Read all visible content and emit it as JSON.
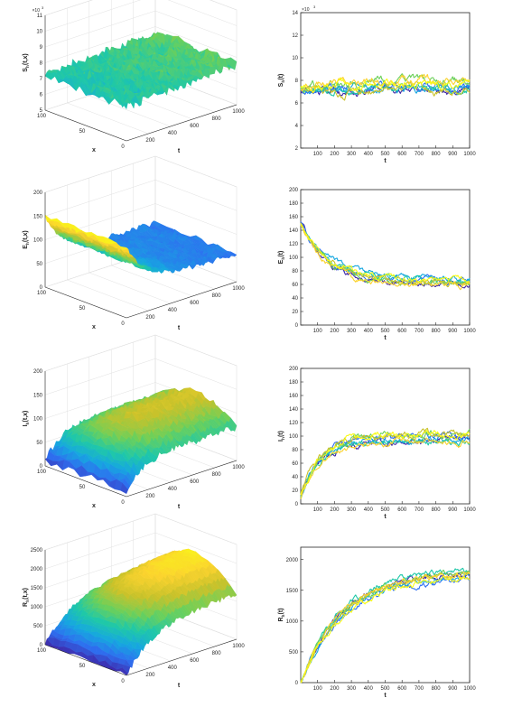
{
  "figure": {
    "colors": {
      "palette": [
        "#3e26a8",
        "#2e6ff0",
        "#16a7e0",
        "#1fc8a8",
        "#6cd05a",
        "#c9c22a",
        "#fbd32e",
        "#f9fb15"
      ],
      "axis": "#262626",
      "grid": "#e0e0e0"
    }
  },
  "chart_data": [
    {
      "id": "S3d",
      "type": "surface",
      "zlabel_main": "S",
      "zlabel_sub": "h",
      "zlabel_suffix": "(t,x)",
      "xlabel": "x",
      "ylabel": "t",
      "zlim": [
        5,
        11
      ],
      "z_exponent": "×10",
      "z_exponent_power": "3",
      "zticks": [
        "5",
        "6",
        "7",
        "8",
        "9",
        "10",
        "11"
      ],
      "xticks": [
        "0",
        "50",
        "100"
      ],
      "tticks": [
        "200",
        "400",
        "600",
        "800",
        "1000"
      ],
      "t_range": [
        0,
        1000
      ],
      "x_range": [
        0,
        100
      ],
      "pattern": "flat",
      "start": 7.2,
      "end": 7.6,
      "noise": 0.35,
      "color_range": [
        6,
        9
      ],
      "grid": true
    },
    {
      "id": "S2d",
      "type": "line",
      "ylabel_main": "S",
      "ylabel_sub": "h",
      "ylabel_suffix": "(t)",
      "xlabel": "t",
      "xlim": [
        0,
        1000
      ],
      "ylim": [
        2,
        14
      ],
      "y_exponent": "×10",
      "y_exponent_power": "3",
      "xticks": [
        "100",
        "200",
        "300",
        "400",
        "500",
        "600",
        "700",
        "800",
        "900",
        "1000"
      ],
      "yticks": [
        "2",
        "4",
        "6",
        "8",
        "10",
        "12",
        "14"
      ],
      "series_count": 8,
      "pattern": "flat",
      "start": 7.2,
      "end": 7.5,
      "noise": 0.45,
      "series_spread": 0.5
    },
    {
      "id": "E3d",
      "type": "surface",
      "zlabel_main": "E",
      "zlabel_sub": "h",
      "zlabel_suffix": "(t,x)",
      "xlabel": "x",
      "ylabel": "t",
      "zlim": [
        0,
        200
      ],
      "zticks": [
        "0",
        "50",
        "100",
        "150",
        "200"
      ],
      "xticks": [
        "0",
        "50",
        "100"
      ],
      "tticks": [
        "200",
        "400",
        "600",
        "800",
        "1000"
      ],
      "t_range": [
        0,
        1000
      ],
      "x_range": [
        0,
        100
      ],
      "pattern": "decay",
      "start": 150,
      "end": 60,
      "noise": 6,
      "color_range": [
        40,
        150
      ],
      "grid": true
    },
    {
      "id": "E2d",
      "type": "line",
      "ylabel_main": "E",
      "ylabel_sub": "h",
      "ylabel_suffix": "(t)",
      "xlabel": "t",
      "xlim": [
        0,
        1000
      ],
      "ylim": [
        0,
        200
      ],
      "xticks": [
        "100",
        "200",
        "300",
        "400",
        "500",
        "600",
        "700",
        "800",
        "900",
        "1000"
      ],
      "yticks": [
        "0",
        "20",
        "40",
        "60",
        "80",
        "100",
        "120",
        "140",
        "160",
        "180",
        "200"
      ],
      "series_count": 8,
      "pattern": "decay",
      "start": 150,
      "end": 62,
      "noise": 5,
      "series_spread": 6
    },
    {
      "id": "I3d",
      "type": "surface",
      "zlabel_main": "I",
      "zlabel_sub": "h",
      "zlabel_suffix": "(t,x)",
      "xlabel": "x",
      "ylabel": "t",
      "zlim": [
        0,
        200
      ],
      "zticks": [
        "0",
        "50",
        "100",
        "150",
        "200"
      ],
      "xticks": [
        "0",
        "50",
        "100"
      ],
      "tticks": [
        "200",
        "400",
        "600",
        "800",
        "1000"
      ],
      "t_range": [
        0,
        1000
      ],
      "x_range": [
        0,
        100
      ],
      "pattern": "rise",
      "start": 10,
      "end": 100,
      "noise": 8,
      "color_range": [
        0,
        150
      ],
      "grid": true
    },
    {
      "id": "I2d",
      "type": "line",
      "ylabel_main": "I",
      "ylabel_sub": "h",
      "ylabel_suffix": "(t)",
      "xlabel": "t",
      "xlim": [
        0,
        1000
      ],
      "ylim": [
        0,
        200
      ],
      "xticks": [
        "100",
        "200",
        "300",
        "400",
        "500",
        "600",
        "700",
        "800",
        "900",
        "1000"
      ],
      "yticks": [
        "0",
        "20",
        "40",
        "60",
        "80",
        "100",
        "120",
        "140",
        "160",
        "180",
        "200"
      ],
      "series_count": 8,
      "pattern": "rise",
      "start": 10,
      "end": 95,
      "noise": 6,
      "series_spread": 8
    },
    {
      "id": "R3d",
      "type": "surface",
      "zlabel_main": "R",
      "zlabel_sub": "h",
      "zlabel_suffix": "(t,x)",
      "xlabel": "x",
      "ylabel": "t",
      "zlim": [
        0,
        2500
      ],
      "zticks": [
        "0",
        "500",
        "1000",
        "1500",
        "2000",
        "2500"
      ],
      "xticks": [
        "0",
        "50",
        "100"
      ],
      "tticks": [
        "200",
        "400",
        "600",
        "800",
        "1000"
      ],
      "t_range": [
        0,
        1000
      ],
      "x_range": [
        0,
        100
      ],
      "pattern": "saturate",
      "start": 0,
      "end": 1750,
      "noise": 70,
      "color_range": [
        0,
        2000
      ],
      "grid": true
    },
    {
      "id": "R2d",
      "type": "line",
      "ylabel_main": "R",
      "ylabel_sub": "h",
      "ylabel_suffix": "(t)",
      "xlabel": "t",
      "xlim": [
        0,
        1000
      ],
      "ylim": [
        0,
        2200
      ],
      "xticks": [
        "100",
        "200",
        "300",
        "400",
        "500",
        "600",
        "700",
        "800",
        "900",
        "1000"
      ],
      "yticks": [
        "0",
        "500",
        "1000",
        "1500",
        "2000"
      ],
      "ytick_values": [
        0,
        500,
        1000,
        1500,
        2000
      ],
      "series_count": 8,
      "pattern": "saturate",
      "start": 0,
      "end": 1800,
      "noise": 60,
      "series_spread": 80
    }
  ]
}
